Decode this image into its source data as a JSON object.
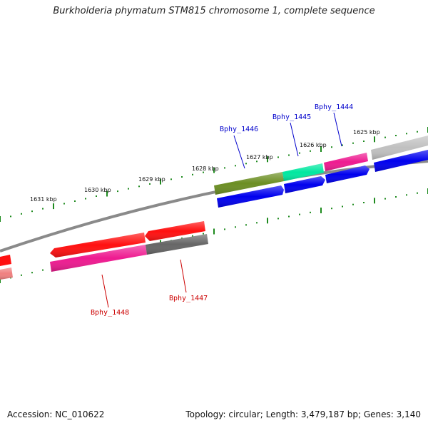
{
  "title": "Burkholderia phymatum STM815 chromosome 1, complete sequence",
  "accession": "Accession: NC_010622",
  "summary": "Topology: circular; Length: 3,479,187 bp; Genes: 3,140",
  "colors": {
    "backbone": "#8a8a8a",
    "tick": "#1e8a1e",
    "label_forward": "#0000cc",
    "label_reverse": "#cc0000",
    "cds_blue": "#0000ee",
    "red": "#ff1010",
    "olive": "#6b8e23",
    "spring_green": "#00e8a0",
    "deep_pink": "#ee1a90",
    "gray": "#c0c0c0",
    "dim_gray": "#666666",
    "light_coral": "#f08080"
  },
  "kbp_labels": [
    "1631 kbp",
    "1630 kbp",
    "1629 kbp",
    "1628 kbp",
    "1627 kbp",
    "1626 kbp",
    "1625 kbp"
  ],
  "gene_labels": {
    "forward": [
      "Bphy_1446",
      "Bphy_1445",
      "Bphy_1444"
    ],
    "reverse": [
      "Bphy_1448",
      "Bphy_1447"
    ]
  }
}
